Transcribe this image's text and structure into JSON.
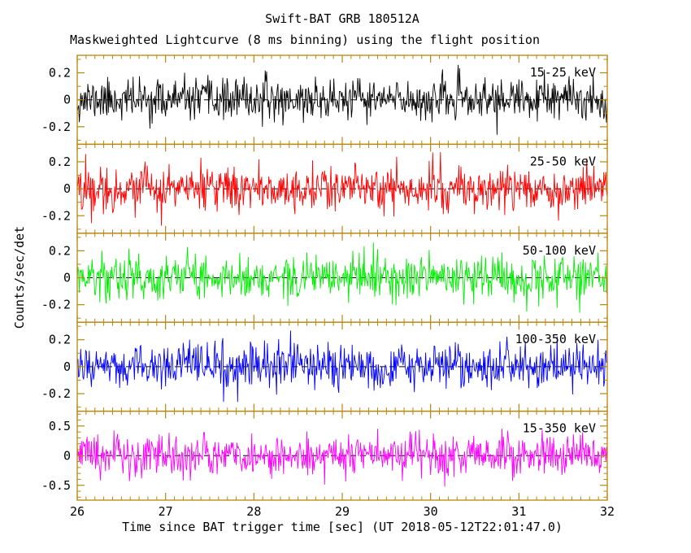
{
  "chart_data": {
    "type": "line",
    "title": "Swift-BAT GRB 180512A",
    "subtitle": "Maskweighted Lightcurve (8 ms binning) using the flight position",
    "xlabel": "Time since BAT trigger time [sec] (UT 2018-05-12T22:01:47.0)",
    "ylabel": "Counts/sec/det",
    "x_range": [
      26,
      32
    ],
    "x_major_ticks": [
      26,
      27,
      28,
      29,
      30,
      31,
      32
    ],
    "x_minor_tick_step": 0.1,
    "bin_width_sec": 0.008,
    "grid": false,
    "legend_position": "in-panel-top-right",
    "frame_color": "#b8860b",
    "zero_line": {
      "style": "dashed",
      "color": "#000000",
      "value": 0
    },
    "panels": [
      {
        "label": "15-25 keV",
        "color": "#000000",
        "y_range": [
          -0.33,
          0.33
        ],
        "y_ticks": [
          0.2,
          0,
          -0.2
        ],
        "y_minor_step": 0.1,
        "noise_sigma": 0.075,
        "mean": 0,
        "seed": 11
      },
      {
        "label": "25-50 keV",
        "color": "#ff0000",
        "y_range": [
          -0.33,
          0.33
        ],
        "y_ticks": [
          0.2,
          0,
          -0.2
        ],
        "y_minor_step": 0.1,
        "noise_sigma": 0.082,
        "mean": 0,
        "seed": 22
      },
      {
        "label": "50-100 keV",
        "color": "#00ee00",
        "y_range": [
          -0.33,
          0.33
        ],
        "y_ticks": [
          0.2,
          0,
          -0.2
        ],
        "y_minor_step": 0.1,
        "noise_sigma": 0.082,
        "mean": 0,
        "seed": 33
      },
      {
        "label": "100-350 keV",
        "color": "#0000ff",
        "y_range": [
          -0.33,
          0.33
        ],
        "y_ticks": [
          0.2,
          0,
          -0.2
        ],
        "y_minor_step": 0.1,
        "noise_sigma": 0.082,
        "mean": 0,
        "seed": 44
      },
      {
        "label": "15-350 keV",
        "color": "#ff00ff",
        "y_range": [
          -0.75,
          0.75
        ],
        "y_ticks": [
          0.5,
          0,
          -0.5
        ],
        "y_minor_step": 0.1,
        "noise_sigma": 0.175,
        "mean": 0,
        "seed": 55
      }
    ]
  }
}
